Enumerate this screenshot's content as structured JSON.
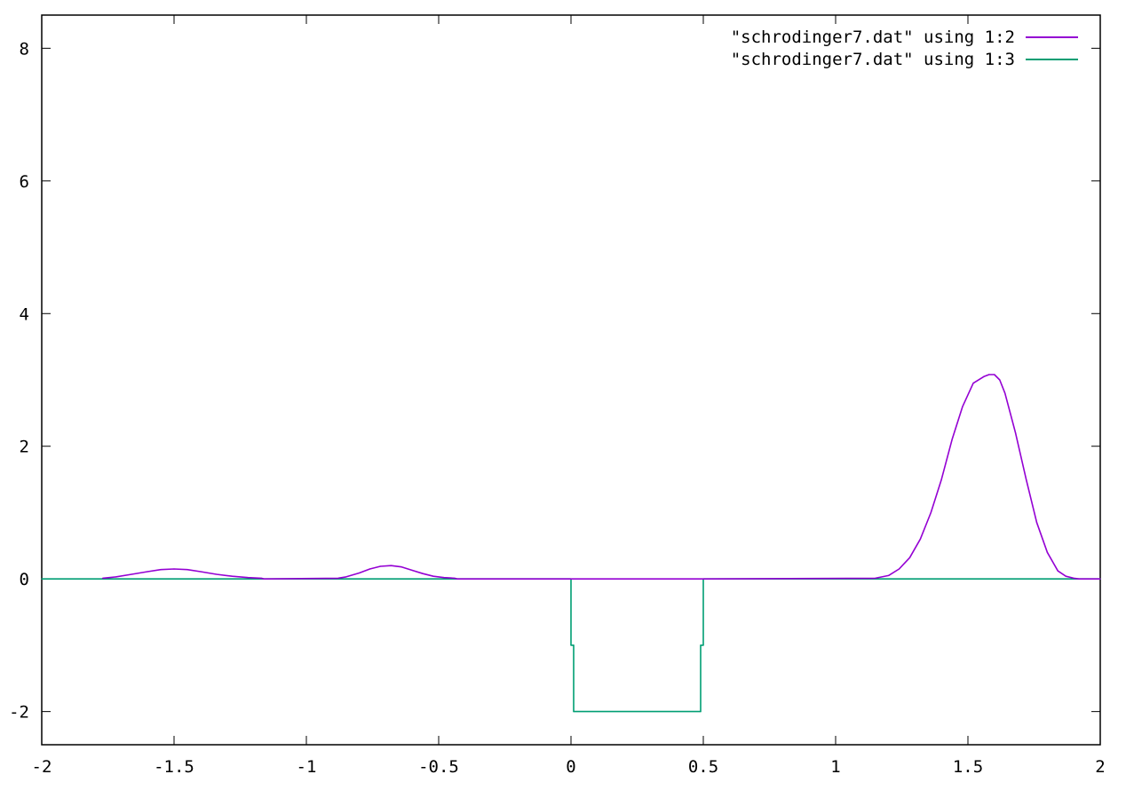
{
  "chart_data": {
    "type": "line",
    "title": "",
    "xlabel": "",
    "ylabel": "",
    "xlim": [
      -2,
      2
    ],
    "ylim": [
      -2.5,
      8.5
    ],
    "x_ticks": [
      -2,
      -1.5,
      -1,
      -0.5,
      0,
      0.5,
      1,
      1.5,
      2
    ],
    "x_tick_labels": [
      "-2",
      "-1.5",
      "-1",
      "-0.5",
      "0",
      "0.5",
      "1",
      "1.5",
      "2"
    ],
    "y_ticks": [
      -2,
      0,
      2,
      4,
      6,
      8
    ],
    "y_tick_labels": [
      "-2",
      "0",
      "2",
      "4",
      "6",
      "8"
    ],
    "grid": false,
    "legend_position": "top-right",
    "series": [
      {
        "name": "\"schrodinger7.dat\" using 1:2",
        "color": "#9400d3",
        "x": [
          -1.77,
          -1.72,
          -1.66,
          -1.6,
          -1.55,
          -1.5,
          -1.45,
          -1.4,
          -1.34,
          -1.28,
          -1.22,
          -1.17,
          -1.16,
          -0.88,
          -0.85,
          -0.8,
          -0.76,
          -0.72,
          -0.68,
          -0.64,
          -0.6,
          -0.56,
          -0.52,
          -0.48,
          -0.44,
          -0.43,
          0.0,
          0.5,
          1.15,
          1.2,
          1.24,
          1.28,
          1.32,
          1.36,
          1.4,
          1.44,
          1.48,
          1.52,
          1.56,
          1.58,
          1.6,
          1.62,
          1.64,
          1.68,
          1.72,
          1.76,
          1.8,
          1.84,
          1.87,
          1.9,
          1.92,
          2.0
        ],
        "y": [
          0.01,
          0.03,
          0.07,
          0.11,
          0.14,
          0.15,
          0.14,
          0.11,
          0.07,
          0.04,
          0.02,
          0.01,
          0.0,
          0.01,
          0.03,
          0.09,
          0.15,
          0.19,
          0.2,
          0.18,
          0.13,
          0.08,
          0.04,
          0.02,
          0.01,
          0.0,
          0.0,
          0.0,
          0.01,
          0.05,
          0.15,
          0.32,
          0.6,
          1.0,
          1.5,
          2.1,
          2.6,
          2.95,
          3.05,
          3.08,
          3.08,
          3.0,
          2.8,
          2.2,
          1.5,
          0.85,
          0.4,
          0.12,
          0.04,
          0.01,
          0.0,
          0.0
        ]
      },
      {
        "name": "\"schrodinger7.dat\" using 1:3",
        "color": "#009e73",
        "x": [
          -2,
          0.0,
          0.0,
          0.01,
          0.01,
          0.49,
          0.49,
          0.5,
          0.5,
          2
        ],
        "y": [
          0,
          0,
          -1,
          -1,
          -2,
          -2,
          -1,
          -1,
          0,
          0
        ]
      }
    ]
  }
}
